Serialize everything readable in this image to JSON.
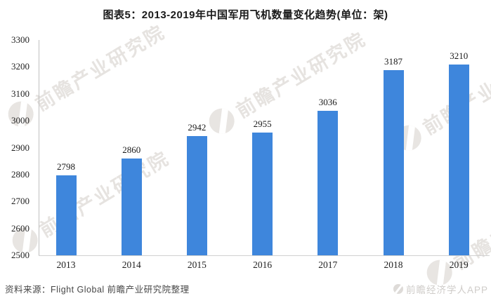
{
  "title": "图表5：2013-2019年中国军用飞机数量变化趋势(单位：架)",
  "chart_data": {
    "type": "bar",
    "categories": [
      "2013",
      "2014",
      "2015",
      "2016",
      "2017",
      "2018",
      "2019"
    ],
    "values": [
      2798,
      2860,
      2942,
      2955,
      3036,
      3187,
      3210
    ],
    "title": "图表5：2013-2019年中国军用飞机数量变化趋势(单位：架)",
    "xlabel": "",
    "ylabel": "",
    "ylim": [
      2500,
      3300
    ],
    "ytick_step": 100,
    "bar_color": "#3E86DC",
    "grid": false,
    "legend": false,
    "data_labels": true
  },
  "source_note": "资料来源：Flight Global  前瞻产业研究院整理",
  "watermark": {
    "brand_text": "前瞻产业研究院",
    "app_text": "前瞻经济学人APP"
  }
}
